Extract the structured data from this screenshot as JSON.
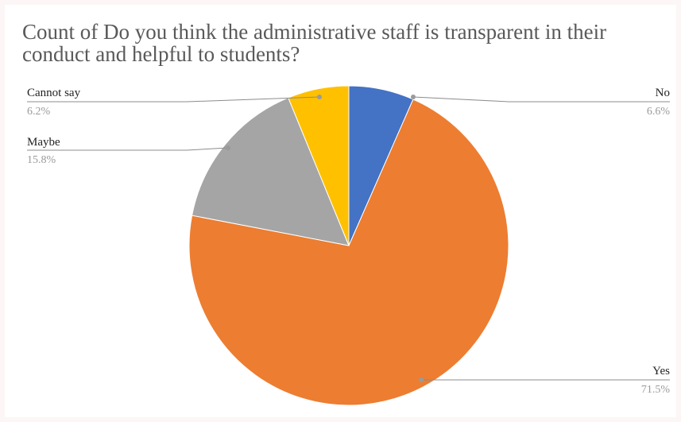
{
  "chart_data": {
    "type": "pie",
    "title": "Count of Do you think the administrative staff is transparent in their conduct and helpful to students?",
    "slices": [
      {
        "label": "No",
        "value": 6.6,
        "pct_label": "6.6%",
        "color": "#4472c4"
      },
      {
        "label": "Yes",
        "value": 71.5,
        "pct_label": "71.5%",
        "color": "#ed7d31"
      },
      {
        "label": "Maybe",
        "value": 15.8,
        "pct_label": "15.8%",
        "color": "#a5a5a5"
      },
      {
        "label": "Cannot say",
        "value": 6.2,
        "pct_label": "6.2%",
        "color": "#ffc000"
      }
    ],
    "start_angle": "12 o'clock",
    "direction": "clockwise",
    "legend": "none",
    "label_style": "leader lines to side labels"
  }
}
